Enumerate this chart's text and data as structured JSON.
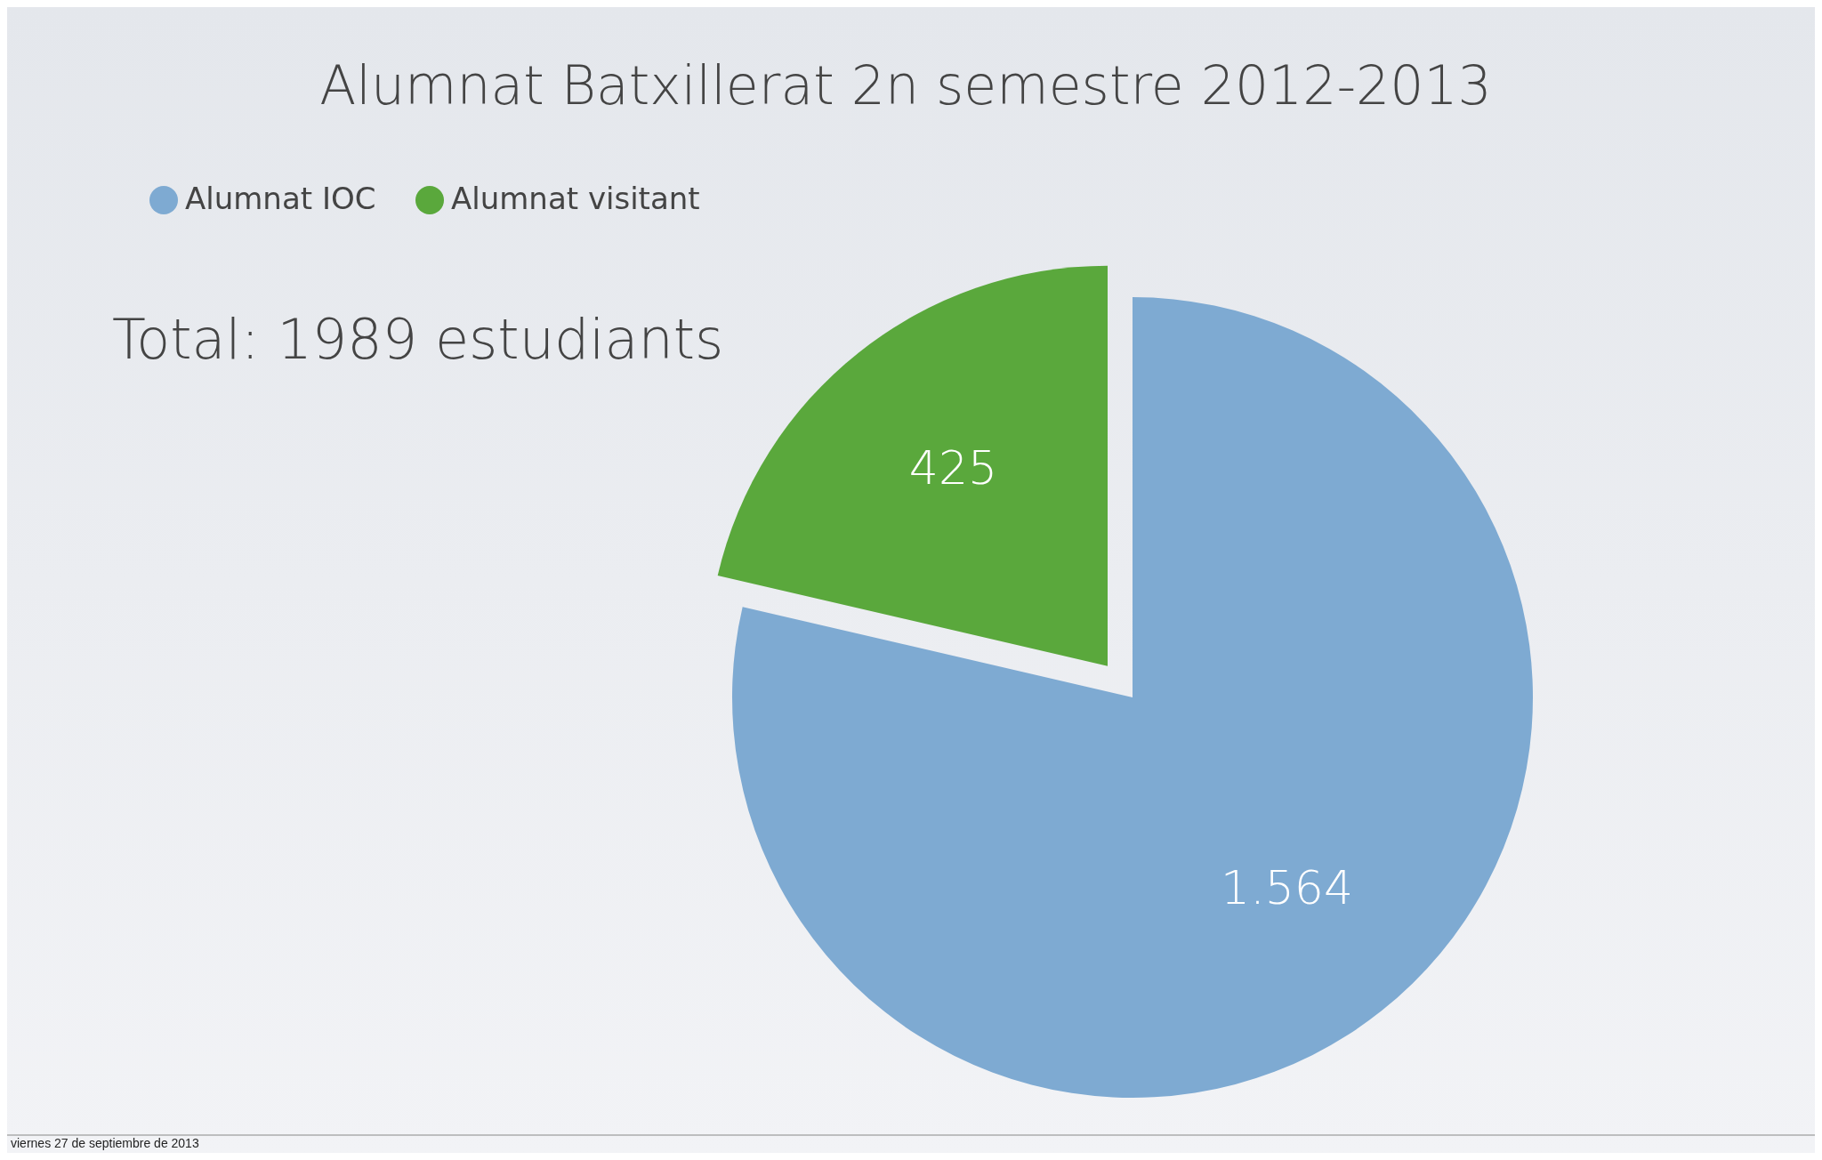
{
  "chart_data": {
    "type": "pie",
    "title": "Alumnat Batxillerat 2n semestre 2012-2013",
    "categories": [
      "Alumnat IOC",
      "Alumnat visitant"
    ],
    "values": [
      1564,
      425
    ],
    "value_labels": [
      "1.564",
      "425"
    ],
    "colors": [
      "#7eaad2",
      "#5aa83c"
    ],
    "legend": "top left",
    "annotations": [
      "Total: 1989 estudiants",
      "viernes 27 de septiembre de 2013"
    ]
  }
}
